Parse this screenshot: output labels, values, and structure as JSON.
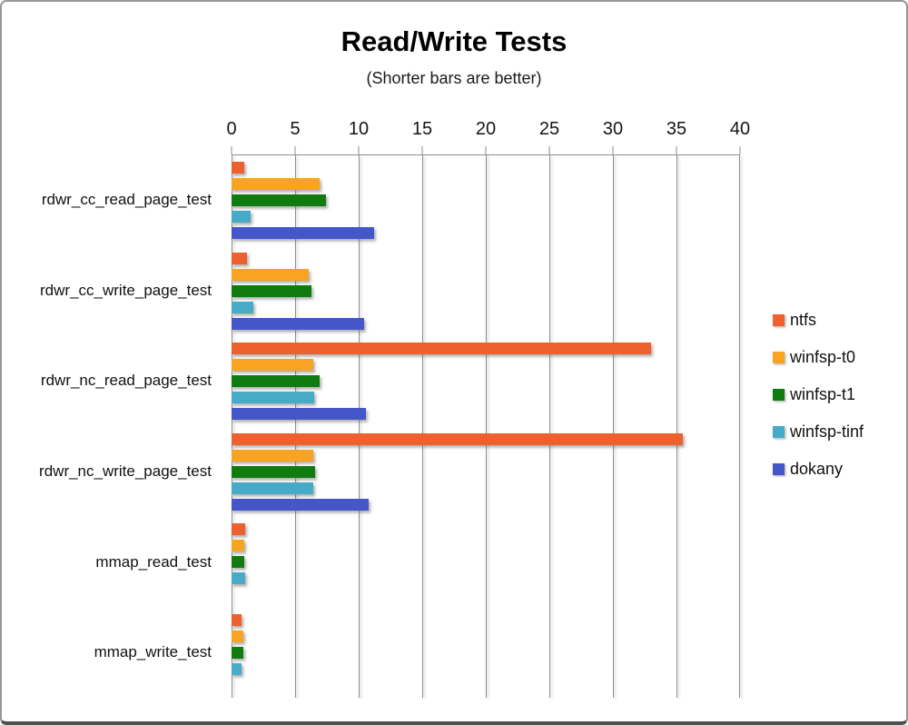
{
  "chart_data": {
    "type": "bar",
    "orientation": "horizontal",
    "title": "Read/Write Tests",
    "subtitle": "(Shorter bars are better)",
    "categories": [
      "rdwr_cc_read_page_test",
      "rdwr_cc_write_page_test",
      "rdwr_nc_read_page_test",
      "rdwr_nc_write_page_test",
      "mmap_read_test",
      "mmap_write_test"
    ],
    "series": [
      {
        "name": "ntfs",
        "color": "#ED612F",
        "values": [
          1.0,
          1.2,
          33.0,
          35.5,
          1.1,
          0.8
        ]
      },
      {
        "name": "winfsp-t0",
        "color": "#F8A322",
        "values": [
          6.9,
          6.1,
          6.4,
          6.4,
          1.0,
          0.9
        ]
      },
      {
        "name": "winfsp-t1",
        "color": "#107C10",
        "values": [
          7.4,
          6.3,
          6.9,
          6.6,
          1.0,
          0.9
        ]
      },
      {
        "name": "winfsp-tinf",
        "color": "#47ABC8",
        "values": [
          1.5,
          1.7,
          6.5,
          6.4,
          1.1,
          0.8
        ]
      },
      {
        "name": "dokany",
        "color": "#4456C8",
        "values": [
          11.2,
          10.4,
          10.6,
          10.8,
          0,
          0
        ]
      }
    ],
    "xlim": [
      0,
      40
    ],
    "xticks": [
      0,
      5,
      10,
      15,
      20,
      25,
      30,
      35,
      40
    ],
    "grid": true,
    "legend_position": "right",
    "axis_color": "#8c8c8c"
  }
}
